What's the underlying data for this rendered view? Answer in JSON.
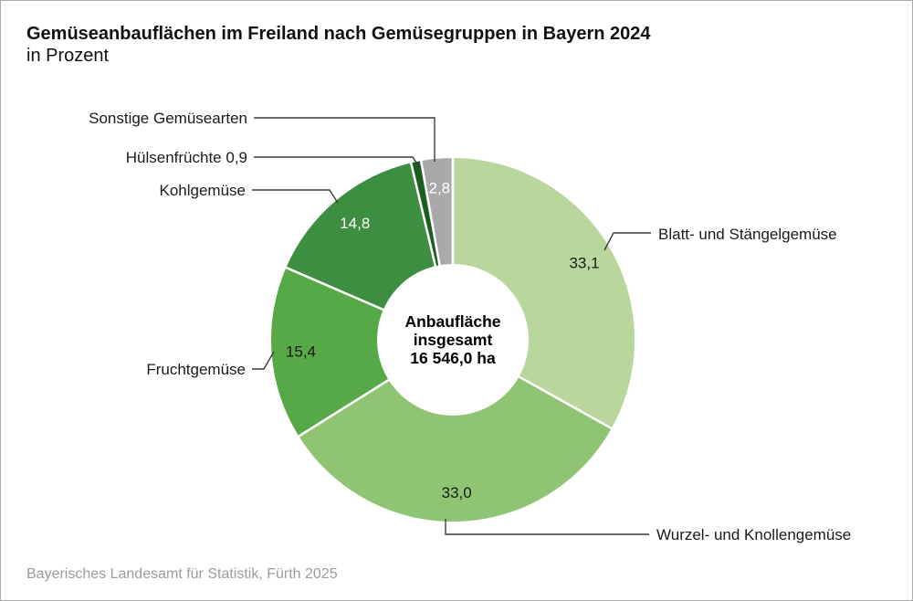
{
  "header": {
    "title": "Gemüseanbauflächen im Freiland nach Gemüsegruppen in Bayern 2024",
    "subtitle": "in Prozent"
  },
  "footer": {
    "source": "Bayerisches Landesamt für Statistik, Fürth 2025"
  },
  "chart_data": {
    "type": "pie",
    "variant": "donut",
    "title": "Gemüseanbauflächen im Freiland nach Gemüsegruppen in Bayern 2024",
    "unit": "Prozent",
    "legend": "none",
    "grid": false,
    "center_label": {
      "lines": [
        "Anbaufläche",
        "insgesamt",
        "16 546,0 ha"
      ],
      "total_ha": "16 546,0"
    },
    "slices": [
      {
        "label": "Blatt- und Stängelgemüse",
        "value": 33.1,
        "display_value": "33,1",
        "color": "#b9d69c",
        "value_label_color": "#1a1a1a",
        "value_label_inside": true
      },
      {
        "label": "Wurzel- und Knollengemüse",
        "value": 33.0,
        "display_value": "33,0",
        "color": "#8fc472",
        "value_label_color": "#1a1a1a",
        "value_label_inside": true
      },
      {
        "label": "Fruchtgemüse",
        "value": 15.4,
        "display_value": "15,4",
        "color": "#57a846",
        "value_label_color": "#1a1a1a",
        "value_label_inside": true
      },
      {
        "label": "Kohlgemüse",
        "value": 14.8,
        "display_value": "14,8",
        "color": "#3e8e41",
        "value_label_color": "#ffffff",
        "value_label_inside": true
      },
      {
        "label": "Hülsenfrüchte",
        "value": 0.9,
        "display_value": "0,9",
        "color": "#1c5e20",
        "value_label_color": "#ffffff",
        "value_label_inside": false
      },
      {
        "label": "Sonstige Gemüsearten",
        "value": 2.8,
        "display_value": "2,8",
        "color": "#a9a9a9",
        "value_label_color": "#ffffff",
        "value_label_inside": true
      }
    ],
    "callouts": [
      {
        "slice": "Sonstige Gemüsearten",
        "text": "Sonstige Gemüsearten"
      },
      {
        "slice": "Hülsenfrüchte",
        "text": "Hülsenfrüchte 0,9"
      },
      {
        "slice": "Kohlgemüse",
        "text": "Kohlgemüse"
      },
      {
        "slice": "Fruchtgemüse",
        "text": "Fruchtgemüse"
      },
      {
        "slice": "Blatt- und Stängelgemüse",
        "text": "Blatt- und Stängelgemüse"
      },
      {
        "slice": "Wurzel- und Knollengemüse",
        "text": "Wurzel- und Knollengemüse"
      }
    ]
  }
}
